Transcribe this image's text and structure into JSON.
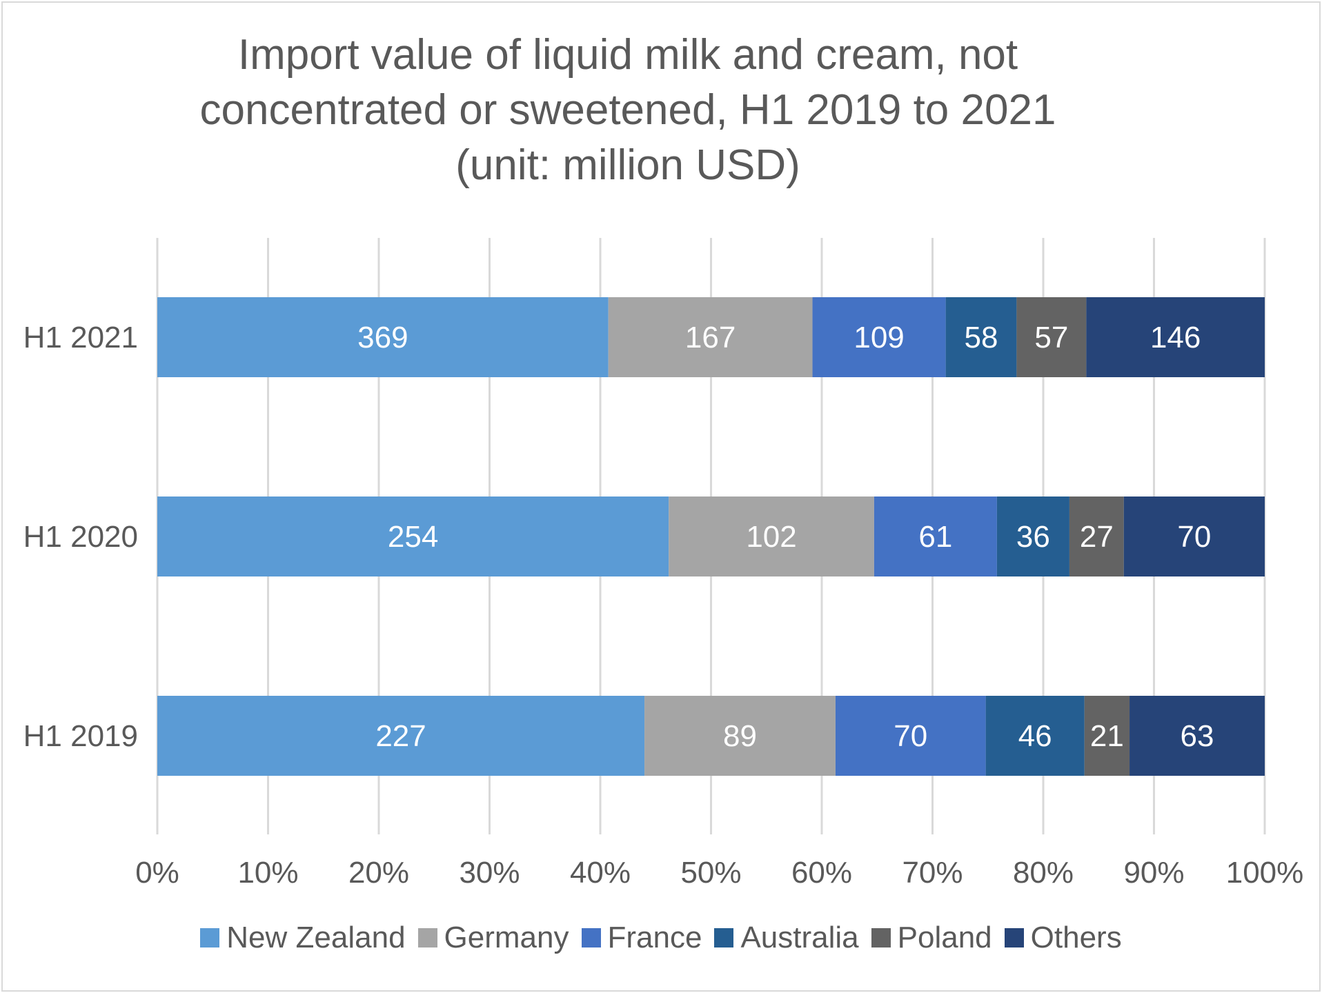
{
  "chart_data": {
    "type": "bar",
    "orientation": "horizontal",
    "stacked": "percent",
    "title": [
      "Import value of liquid milk and cream, not",
      "concentrated or sweetened, H1 2019 to 2021",
      "(unit: million USD)"
    ],
    "categories": [
      "H1 2021",
      "H1 2020",
      "H1 2019"
    ],
    "series": [
      {
        "name": "New Zealand",
        "color": "#5b9bd5",
        "values": [
          369,
          254,
          227
        ]
      },
      {
        "name": "Germany",
        "color": "#a5a5a5",
        "values": [
          167,
          102,
          89
        ]
      },
      {
        "name": "France",
        "color": "#4472c4",
        "values": [
          109,
          61,
          70
        ]
      },
      {
        "name": "Australia",
        "color": "#255e91",
        "values": [
          58,
          36,
          46
        ]
      },
      {
        "name": "Poland",
        "color": "#636363",
        "values": [
          57,
          27,
          21
        ]
      },
      {
        "name": "Others",
        "color": "#264478",
        "values": [
          146,
          70,
          63
        ]
      }
    ],
    "x_ticks": [
      "0%",
      "10%",
      "20%",
      "30%",
      "40%",
      "50%",
      "60%",
      "70%",
      "80%",
      "90%",
      "100%"
    ],
    "xlim": [
      0,
      100
    ],
    "grid": "vertical",
    "legend_position": "bottom",
    "data_labels": true
  }
}
